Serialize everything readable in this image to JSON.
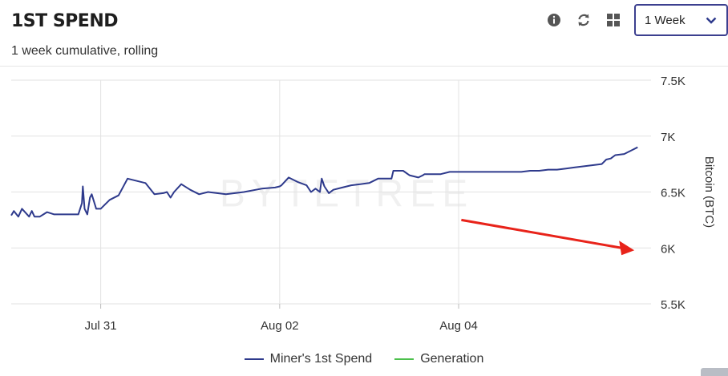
{
  "header": {
    "title": "1ST SPEND",
    "subtitle": "1 week cumulative, rolling",
    "period": "1 Week"
  },
  "toolbar": {
    "icons": [
      "info-icon",
      "refresh-icon",
      "grid-icon",
      "chevron-down-icon"
    ]
  },
  "watermark": "BYTETREE",
  "colors": {
    "miner_series": "#2e3a8c",
    "generation_series": "#4cc04c",
    "annotation_arrow": "#e8231a",
    "select_border": "#3c3f8f"
  },
  "chart_data": {
    "type": "line",
    "x_ticks": [
      "Jul 31",
      "Aug 02",
      "Aug 04"
    ],
    "x_tick_days": [
      1,
      3,
      5
    ],
    "xlim_days": [
      0,
      7.15
    ],
    "ylabel": "Bitcoin (BTC)",
    "y_axis_side": "right",
    "y_ticks": [
      "7.5K",
      "7K",
      "6.5K",
      "6K",
      "5.5K"
    ],
    "y_tick_values": [
      7500,
      7000,
      6500,
      6000,
      5500
    ],
    "ylim": [
      5500,
      7500
    ],
    "grid": true,
    "legend_position": "bottom-center",
    "series": [
      {
        "name": "Miner's 1st Spend",
        "color": "#2e3a8c",
        "x": [
          0.0,
          0.03,
          0.08,
          0.12,
          0.2,
          0.23,
          0.26,
          0.29,
          0.32,
          0.36,
          0.4,
          0.48,
          0.56,
          0.66,
          0.75,
          0.79,
          0.8,
          0.82,
          0.85,
          0.88,
          0.9,
          0.95,
          1.0,
          1.1,
          1.2,
          1.3,
          1.5,
          1.6,
          1.7,
          1.74,
          1.78,
          1.82,
          1.9,
          2.0,
          2.1,
          2.2,
          2.4,
          2.6,
          2.8,
          2.95,
          3.0,
          3.02,
          3.1,
          3.2,
          3.3,
          3.35,
          3.4,
          3.45,
          3.47,
          3.5,
          3.55,
          3.6,
          3.7,
          3.8,
          3.9,
          4.0,
          4.1,
          4.2,
          4.25,
          4.27,
          4.32,
          4.38,
          4.45,
          4.55,
          4.6,
          4.62,
          4.66,
          4.7,
          4.8,
          4.9,
          5.0,
          5.1,
          5.2,
          5.3,
          5.4,
          5.5,
          5.6,
          5.7,
          5.8,
          5.9,
          6.0,
          6.1,
          6.2,
          6.3,
          6.4,
          6.5,
          6.6,
          6.65,
          6.7,
          6.75,
          6.85,
          6.95,
          7.0
        ],
        "y": [
          6290,
          6330,
          6280,
          6350,
          6280,
          6330,
          6280,
          6280,
          6280,
          6300,
          6320,
          6300,
          6300,
          6300,
          6300,
          6400,
          6550,
          6350,
          6300,
          6450,
          6480,
          6350,
          6350,
          6430,
          6470,
          6620,
          6580,
          6480,
          6490,
          6500,
          6450,
          6500,
          6570,
          6520,
          6480,
          6500,
          6480,
          6500,
          6530,
          6540,
          6550,
          6560,
          6630,
          6590,
          6560,
          6500,
          6530,
          6500,
          6620,
          6550,
          6490,
          6520,
          6540,
          6560,
          6570,
          6580,
          6620,
          6620,
          6620,
          6690,
          6690,
          6690,
          6650,
          6630,
          6650,
          6660,
          6660,
          6660,
          6660,
          6680,
          6680,
          6680,
          6680,
          6680,
          6680,
          6680,
          6680,
          6680,
          6690,
          6690,
          6700,
          6700,
          6710,
          6720,
          6730,
          6740,
          6750,
          6790,
          6800,
          6830,
          6840,
          6880,
          6900
        ],
        "note": "series values are sampled from the plotted line"
      },
      {
        "name": "Generation",
        "color": "#4cc04c"
      }
    ]
  }
}
